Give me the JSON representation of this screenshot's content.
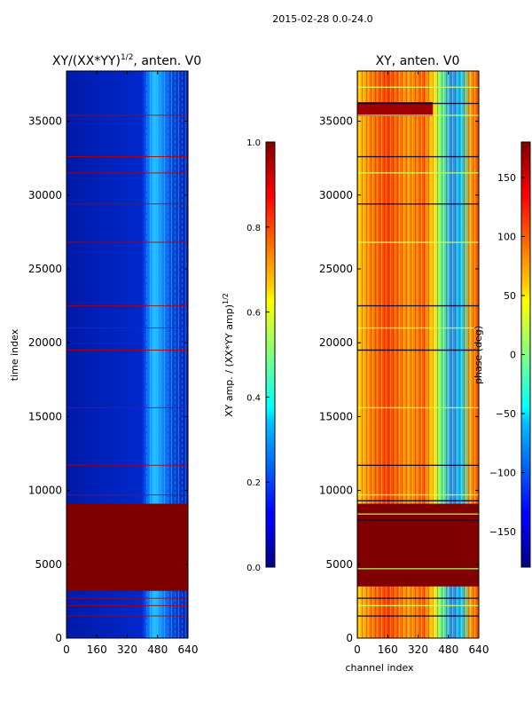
{
  "suptitle": "2015-02-28 0.0-24.0",
  "chart_data": [
    {
      "type": "heatmap",
      "title": "XY/(XX*YY)",
      "title_exponent": "1/2",
      "title_suffix": ", anten. V0",
      "xlabel": "",
      "ylabel": "time index",
      "xlim": [
        0,
        640
      ],
      "ylim": [
        0,
        38400
      ],
      "xticks": [
        0,
        160,
        320,
        480,
        640
      ],
      "yticks": [
        0,
        5000,
        10000,
        15000,
        20000,
        25000,
        30000,
        35000
      ],
      "colormap": "jet",
      "grid": false,
      "colorbar": {
        "label": "XY amp. / (XX*YY amp)",
        "label_exponent": "1/2",
        "range": [
          0.0,
          1.0
        ],
        "ticks": [
          "0.0",
          "0.2",
          "0.4",
          "0.6",
          "0.8",
          "1.0"
        ]
      },
      "features": {
        "saturated_block_time_range": [
          3200,
          9100
        ],
        "flagged_rows_time": [
          1500,
          2200,
          2700,
          9700,
          11700,
          15600,
          19500,
          21000,
          22500,
          26800,
          29400,
          31500,
          32600,
          35400
        ]
      }
    },
    {
      "type": "heatmap",
      "title": "XY, anten. V0",
      "xlabel": "channel index",
      "ylabel": "",
      "xlim": [
        0,
        640
      ],
      "ylim": [
        0,
        38400
      ],
      "xticks": [
        0,
        160,
        320,
        480,
        640
      ],
      "yticks": [
        0,
        5000,
        10000,
        15000,
        20000,
        25000,
        30000,
        35000
      ],
      "colormap": "jet",
      "grid": false,
      "colorbar": {
        "label": "phase (deg)",
        "range": [
          -180,
          180
        ],
        "ticks": [
          "−150",
          "−100",
          "−50",
          "0",
          "50",
          "100",
          "150"
        ]
      },
      "features": {
        "saturated_block_time_range": [
          3500,
          9100
        ],
        "flagged_rows_time": [
          1500,
          2200,
          2700,
          4700,
          8000,
          8400,
          9300,
          9700,
          11700,
          15600,
          19500,
          21000,
          22500,
          26800,
          29400,
          31500,
          32600,
          35400,
          36200,
          37300
        ]
      }
    }
  ]
}
